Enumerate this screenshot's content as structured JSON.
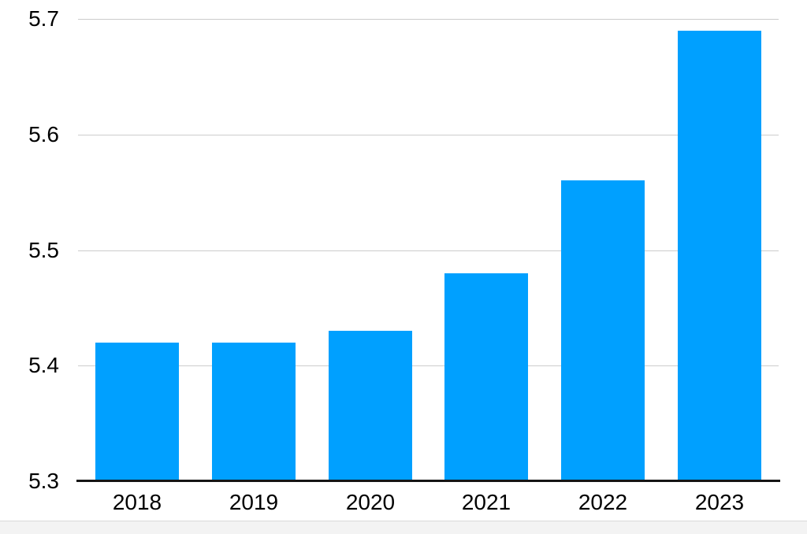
{
  "chart_data": {
    "type": "bar",
    "categories": [
      "2018",
      "2019",
      "2020",
      "2021",
      "2022",
      "2023"
    ],
    "values": [
      5.42,
      5.42,
      5.43,
      5.48,
      5.56,
      5.69
    ],
    "title": "",
    "xlabel": "",
    "ylabel": "",
    "ylim": [
      5.3,
      5.7
    ],
    "yticks": [
      5.3,
      5.4,
      5.5,
      5.6,
      5.7
    ],
    "ytick_labels": [
      "5.3",
      "5.4",
      "5.5",
      "5.6",
      "5.7"
    ],
    "grid": true,
    "legend": false,
    "colors": {
      "bar": "#00A0FF",
      "axis_line": "#151515",
      "gridline": "#cccccc",
      "tick_label": "#000000",
      "bottom_strip": "#f3f3f3"
    }
  }
}
